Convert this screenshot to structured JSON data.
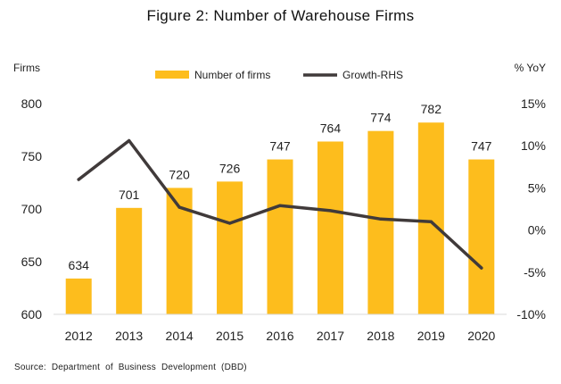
{
  "title": "Figure 2:  Number of Warehouse Firms",
  "source": "Source:   Department of Business Development (DBD)",
  "colors": {
    "bar": "#FDBD1D",
    "line": "#403A3A",
    "text": "#222222"
  },
  "chart_data": {
    "type": "bar",
    "categories": [
      "2012",
      "2013",
      "2014",
      "2015",
      "2016",
      "2017",
      "2018",
      "2019",
      "2020"
    ],
    "series": [
      {
        "name": "Number of firms",
        "type": "bar",
        "axis": "left",
        "values": [
          634,
          701,
          720,
          726,
          747,
          764,
          774,
          782,
          747
        ],
        "data_labels": [
          "634",
          "701",
          "720",
          "726",
          "747",
          "764",
          "774",
          "782",
          "747"
        ]
      },
      {
        "name": "Growth-RHS",
        "type": "line",
        "axis": "right",
        "values": [
          6.0,
          10.6,
          2.7,
          0.8,
          2.9,
          2.3,
          1.3,
          1.0,
          -4.5
        ]
      }
    ],
    "ylabel": "Firms",
    "y2label": "% YoY",
    "ylim": [
      600,
      800
    ],
    "y2lim": [
      -10,
      15
    ],
    "yticks": [
      "600",
      "650",
      "700",
      "750",
      "800"
    ],
    "y2ticks": [
      "-10%",
      "-5%",
      "0%",
      "5%",
      "10%",
      "15%"
    ],
    "legend_position": "top-center",
    "grid": false
  }
}
